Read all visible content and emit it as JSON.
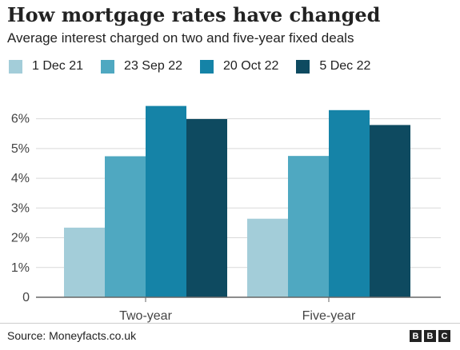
{
  "header": {
    "title": "How mortgage rates have changed",
    "subtitle": "Average interest charged on two and five-year fixed deals"
  },
  "footer": {
    "source": "Source: Moneyfacts.co.uk",
    "logo_letters": [
      "B",
      "B",
      "C"
    ]
  },
  "colors": {
    "series": [
      "#a3cdd9",
      "#4fa8c1",
      "#1583a7",
      "#0e4a60"
    ],
    "gridline": "#d9d9d9",
    "baseline": "#666666",
    "text": "#222222"
  },
  "chart_data": {
    "type": "bar",
    "title": "How mortgage rates have changed",
    "subtitle": "Average interest charged on two and five-year fixed deals",
    "categories": [
      "Two-year",
      "Five-year"
    ],
    "series": [
      {
        "name": "1 Dec 21",
        "values": [
          2.34,
          2.64
        ]
      },
      {
        "name": "23 Sep 22",
        "values": [
          4.74,
          4.75
        ]
      },
      {
        "name": "20 Oct 22",
        "values": [
          6.43,
          6.29
        ]
      },
      {
        "name": "5 Dec 22",
        "values": [
          5.99,
          5.79
        ]
      }
    ],
    "ylim": [
      0,
      6.5
    ],
    "yticks": [
      "0",
      "1%",
      "2%",
      "3%",
      "4%",
      "5%",
      "6%"
    ],
    "ytick_values": [
      0,
      1,
      2,
      3,
      4,
      5,
      6
    ],
    "grid": true,
    "legend": "top-left"
  }
}
